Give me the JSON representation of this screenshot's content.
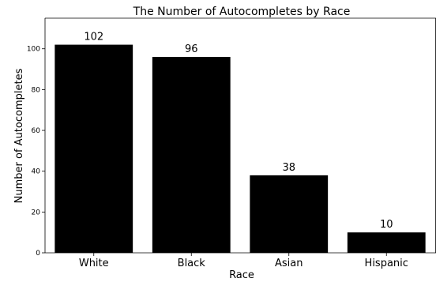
{
  "chart_data": {
    "type": "bar",
    "title": "The Number of Autocompletes by Race",
    "xlabel": "Race",
    "ylabel": "Number of Autocompletes",
    "categories": [
      "White",
      "Black",
      "Asian",
      "Hispanic"
    ],
    "values": [
      102,
      96,
      38,
      10
    ],
    "data_labels": [
      "102",
      "96",
      "38",
      "10"
    ],
    "ylim": [
      0,
      115
    ],
    "yticks": [
      0,
      20,
      40,
      60,
      80,
      100
    ],
    "ytick_labels": [
      "0",
      "20",
      "40",
      "60",
      "80",
      "100"
    ],
    "grid": false,
    "legend": "none",
    "bar_color": "#000000"
  }
}
